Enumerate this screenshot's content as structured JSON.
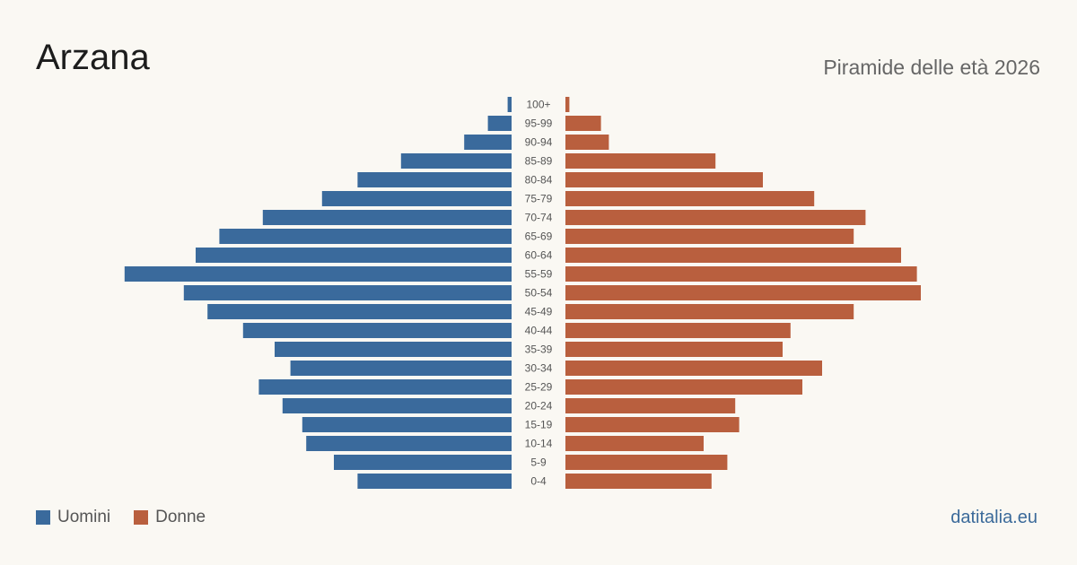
{
  "header": {
    "title": "Arzana",
    "subtitle": "Piramide delle età 2026"
  },
  "legend": {
    "men_label": "Uomini",
    "women_label": "Donne"
  },
  "brand": "datitalia.eu",
  "colors": {
    "men": "#3a6a9c",
    "women": "#b95f3e",
    "background": "#faf8f3"
  },
  "chart_data": {
    "type": "bar",
    "orientation": "horizontal-pyramid",
    "categories": [
      "100+",
      "95-99",
      "90-94",
      "85-89",
      "80-84",
      "75-79",
      "70-74",
      "65-69",
      "60-64",
      "55-59",
      "50-54",
      "45-49",
      "40-44",
      "35-39",
      "30-34",
      "25-29",
      "20-24",
      "15-19",
      "10-14",
      "5-9",
      "0-4"
    ],
    "series": [
      {
        "name": "Uomini",
        "values": [
          1,
          6,
          12,
          28,
          39,
          48,
          63,
          74,
          80,
          98,
          83,
          77,
          68,
          60,
          56,
          64,
          58,
          53,
          52,
          45,
          39
        ]
      },
      {
        "name": "Donne",
        "values": [
          1,
          9,
          11,
          38,
          50,
          63,
          76,
          73,
          85,
          89,
          90,
          73,
          57,
          55,
          65,
          60,
          43,
          44,
          35,
          41,
          37
        ]
      }
    ],
    "xlim": [
      0,
      100
    ]
  }
}
